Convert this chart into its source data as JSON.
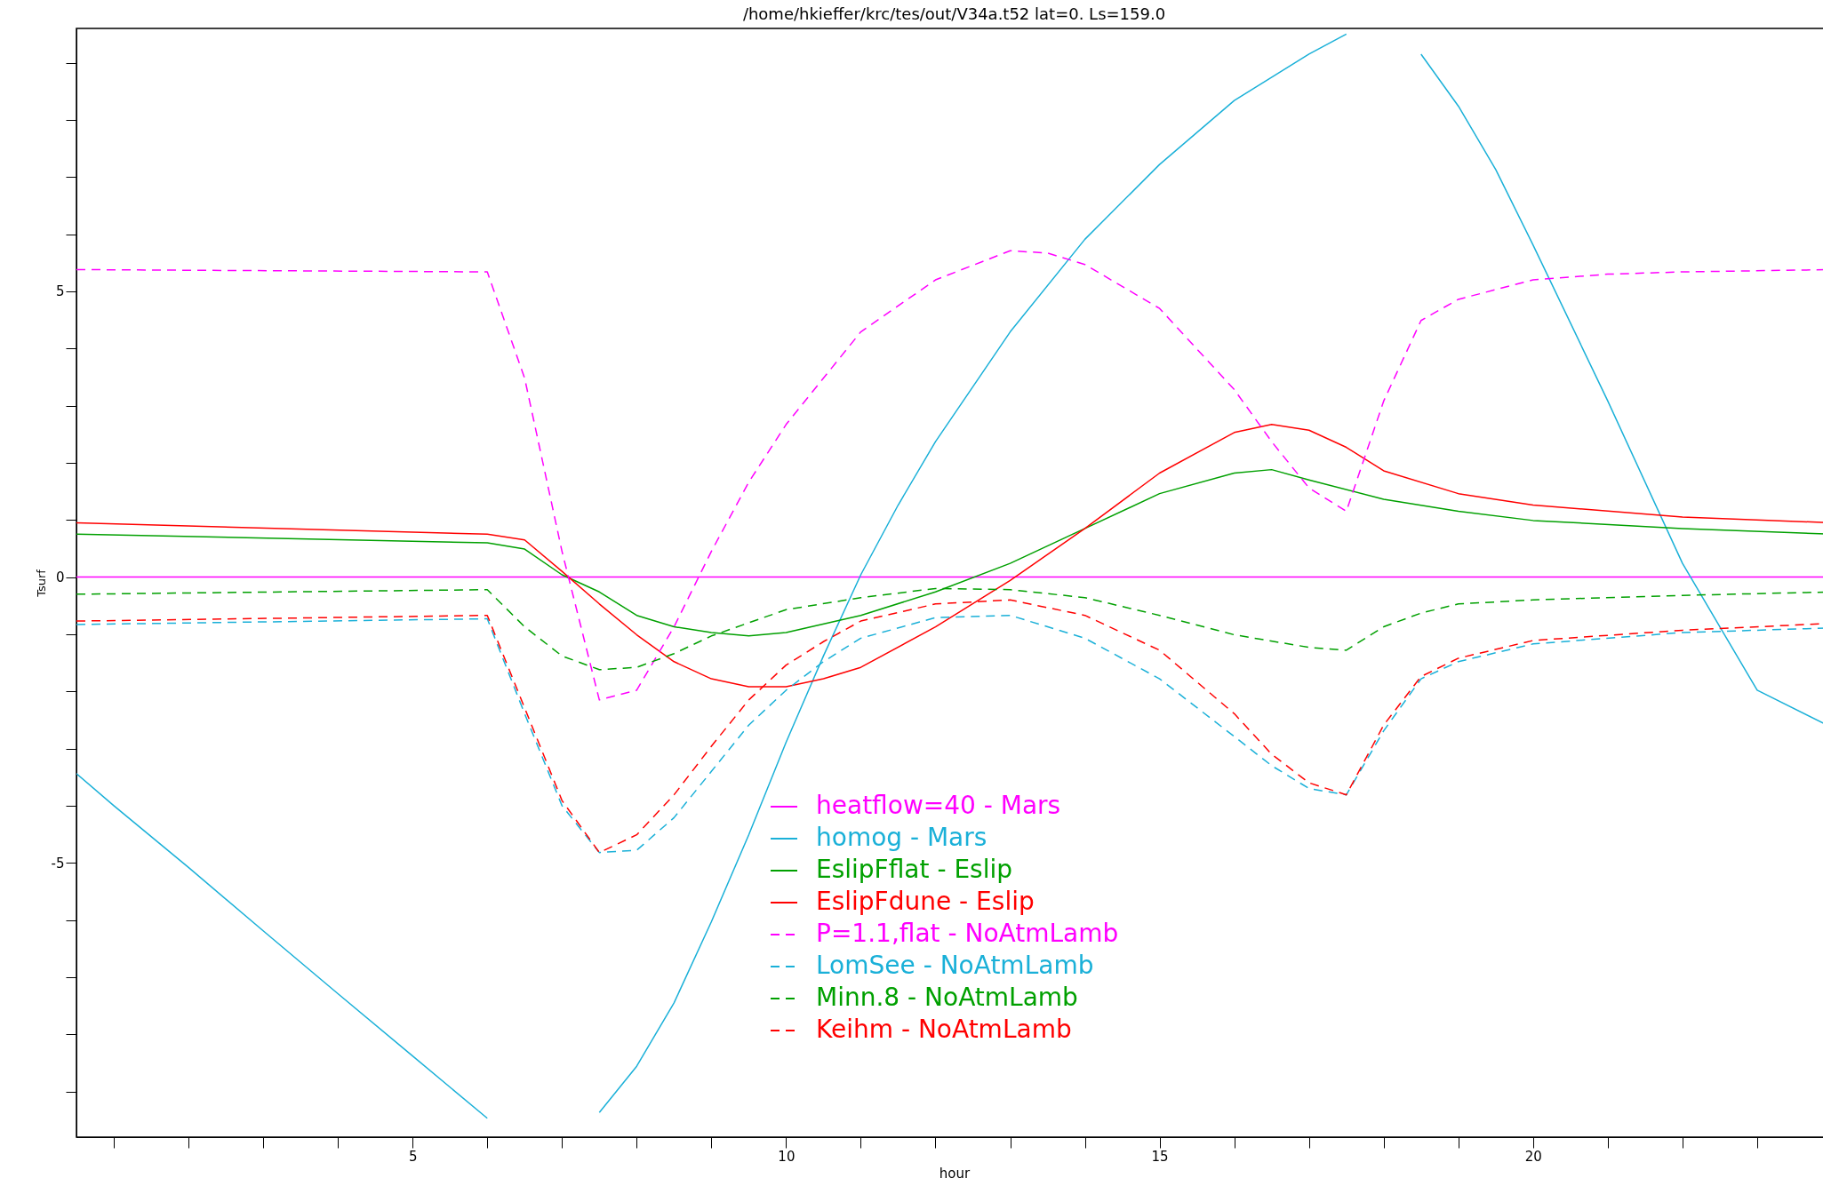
{
  "chart_data": {
    "type": "line",
    "title": "/home/hkieffer/krc/tes/out/V34a.t52 lat=0. Ls=159.0",
    "xlabel": "hour",
    "ylabel": "Tsurf",
    "xlim": [
      0.5,
      24
    ],
    "ylim": [
      -9.8,
      9.6
    ],
    "xticks": [
      {
        "value": 1,
        "label": null
      },
      {
        "value": 2,
        "label": null
      },
      {
        "value": 3,
        "label": null
      },
      {
        "value": 4,
        "label": null
      },
      5,
      {
        "value": 6,
        "label": null
      },
      {
        "value": 7,
        "label": null
      },
      {
        "value": 8,
        "label": null
      },
      {
        "value": 9,
        "label": null
      },
      10,
      {
        "value": 11,
        "label": null
      },
      {
        "value": 12,
        "label": null
      },
      {
        "value": 13,
        "label": null
      },
      {
        "value": 14,
        "label": null
      },
      15,
      {
        "value": 16,
        "label": null
      },
      {
        "value": 17,
        "label": null
      },
      {
        "value": 18,
        "label": null
      },
      {
        "value": 19,
        "label": null
      },
      20,
      {
        "value": 21,
        "label": null
      },
      {
        "value": 22,
        "label": null
      },
      {
        "value": 23,
        "label": null
      },
      {
        "value": 24,
        "label": null
      }
    ],
    "yticks": [
      {
        "value": -9,
        "label": null
      },
      {
        "value": -8,
        "label": null
      },
      {
        "value": -7,
        "label": null
      },
      {
        "value": -6,
        "label": null
      },
      -5,
      {
        "value": -4,
        "label": null
      },
      {
        "value": -3,
        "label": null
      },
      {
        "value": -2,
        "label": null
      },
      {
        "value": -1,
        "label": null
      },
      0,
      {
        "value": 1,
        "label": null
      },
      {
        "value": 2,
        "label": null
      },
      {
        "value": 3,
        "label": null
      },
      {
        "value": 4,
        "label": null
      },
      5,
      {
        "value": 6,
        "label": null
      },
      {
        "value": 7,
        "label": null
      },
      {
        "value": 8,
        "label": null
      },
      {
        "value": 9,
        "label": null
      }
    ],
    "legend": "bottom",
    "marker": "none",
    "series": [
      {
        "name": "heatflow=40 - Mars",
        "color": "#ff00ff",
        "line_style": "solid",
        "x": [
          0.5,
          24
        ],
        "values": [
          0,
          0
        ]
      },
      {
        "name": "homog - Mars",
        "color": "#1ab0d8",
        "line_style": "solid",
        "x": [
          0.5,
          1,
          2,
          3,
          4,
          5,
          6,
          6.5,
          7,
          7.5,
          8,
          8.5,
          9,
          9.5,
          10,
          10.5,
          11,
          11.5,
          12,
          13,
          14,
          15,
          16,
          17,
          17.5,
          18,
          18.5,
          19,
          19.5,
          20,
          21,
          22,
          23,
          24
        ],
        "values": [
          -3.44,
          -4.0,
          -5.08,
          -6.19,
          -7.29,
          -8.38,
          -9.47,
          null,
          null,
          -9.37,
          -8.56,
          -7.45,
          -6.03,
          -4.51,
          -2.89,
          -1.38,
          0.04,
          1.26,
          2.37,
          4.29,
          5.91,
          7.22,
          8.34,
          9.15,
          9.5,
          null,
          9.15,
          8.24,
          7.13,
          5.81,
          3.08,
          0.24,
          -1.98,
          -2.63
        ]
      },
      {
        "name": "EslipFflat - Eslip",
        "color": "#00a000",
        "line_style": "solid",
        "x": [
          0.5,
          6,
          6.5,
          7,
          7.5,
          8,
          8.5,
          9,
          9.5,
          10,
          11,
          12,
          13,
          14,
          15,
          16,
          16.5,
          17,
          18,
          19,
          20,
          22,
          24
        ],
        "values": [
          0.75,
          0.6,
          0.49,
          0.04,
          -0.26,
          -0.67,
          -0.87,
          -0.97,
          -1.03,
          -0.97,
          -0.67,
          -0.26,
          0.24,
          0.85,
          1.46,
          1.82,
          1.88,
          1.7,
          1.36,
          1.15,
          0.99,
          0.85,
          0.75
        ]
      },
      {
        "name": "EslipFdune - Eslip",
        "color": "#ff0000",
        "line_style": "solid",
        "x": [
          0.5,
          6,
          6.5,
          7,
          7.5,
          8,
          8.5,
          9,
          9.5,
          10,
          10.5,
          11,
          12,
          13,
          14,
          15,
          16,
          16.5,
          17,
          17.5,
          18,
          19,
          20,
          22,
          24
        ],
        "values": [
          0.95,
          0.75,
          0.65,
          0.1,
          -0.47,
          -1.01,
          -1.48,
          -1.78,
          -1.92,
          -1.92,
          -1.78,
          -1.58,
          -0.87,
          -0.06,
          0.85,
          1.82,
          2.53,
          2.67,
          2.57,
          2.27,
          1.86,
          1.46,
          1.26,
          1.05,
          0.95
        ]
      },
      {
        "name": "P=1.1,flat - NoAtmLamb",
        "color": "#ff00ff",
        "line_style": "dashed",
        "x": [
          0.5,
          6,
          6.5,
          7,
          7.5,
          8,
          8.5,
          9,
          9.5,
          10,
          11,
          12,
          13,
          13.5,
          14,
          15,
          16,
          16.5,
          17,
          17.5,
          18,
          18.5,
          19,
          20,
          21,
          22,
          24
        ],
        "values": [
          5.38,
          5.34,
          3.48,
          0.45,
          -2.15,
          -1.98,
          -0.87,
          0.45,
          1.66,
          2.67,
          4.29,
          5.2,
          5.71,
          5.67,
          5.47,
          4.7,
          3.28,
          2.37,
          1.56,
          1.15,
          3.08,
          4.49,
          4.86,
          5.2,
          5.3,
          5.34,
          5.38
        ]
      },
      {
        "name": "LomSee - NoAtmLamb",
        "color": "#1ab0d8",
        "line_style": "dashed",
        "x": [
          0.5,
          6,
          6.5,
          7,
          7.5,
          8,
          8.5,
          9,
          9.5,
          10,
          10.5,
          11,
          12,
          13,
          14,
          15,
          16,
          16.5,
          17,
          17.5,
          18,
          18.5,
          19,
          20,
          22,
          24
        ],
        "values": [
          -0.83,
          -0.73,
          -2.39,
          -4.0,
          -4.82,
          -4.78,
          -4.21,
          -3.4,
          -2.59,
          -1.98,
          -1.48,
          -1.07,
          -0.71,
          -0.67,
          -1.07,
          -1.78,
          -2.79,
          -3.3,
          -3.7,
          -3.81,
          -2.69,
          -1.78,
          -1.48,
          -1.17,
          -0.97,
          -0.89
        ]
      },
      {
        "name": "Minn.8 - NoAtmLamb",
        "color": "#00a000",
        "line_style": "dashed",
        "x": [
          0.5,
          6,
          6.5,
          7,
          7.5,
          8,
          8.5,
          9,
          10,
          11,
          12,
          13,
          14,
          15,
          16,
          17,
          17.5,
          18,
          18.5,
          19,
          20,
          22,
          24
        ],
        "values": [
          -0.3,
          -0.22,
          -0.87,
          -1.38,
          -1.62,
          -1.58,
          -1.34,
          -1.03,
          -0.57,
          -0.36,
          -0.2,
          -0.22,
          -0.36,
          -0.67,
          -1.01,
          -1.23,
          -1.28,
          -0.87,
          -0.63,
          -0.47,
          -0.4,
          -0.32,
          -0.26
        ]
      },
      {
        "name": "Keihm - NoAtmLamb",
        "color": "#ff0000",
        "line_style": "dashed",
        "x": [
          0.5,
          6,
          6.5,
          7,
          7.5,
          8,
          8.5,
          9,
          9.5,
          10,
          10.5,
          11,
          12,
          13,
          14,
          15,
          16,
          16.5,
          17,
          17.5,
          18,
          18.5,
          19,
          20,
          22,
          24
        ],
        "values": [
          -0.77,
          -0.67,
          -2.29,
          -3.91,
          -4.82,
          -4.51,
          -3.81,
          -2.96,
          -2.15,
          -1.54,
          -1.13,
          -0.77,
          -0.47,
          -0.4,
          -0.67,
          -1.28,
          -2.39,
          -3.1,
          -3.6,
          -3.81,
          -2.59,
          -1.74,
          -1.42,
          -1.11,
          -0.93,
          -0.81
        ]
      }
    ]
  }
}
